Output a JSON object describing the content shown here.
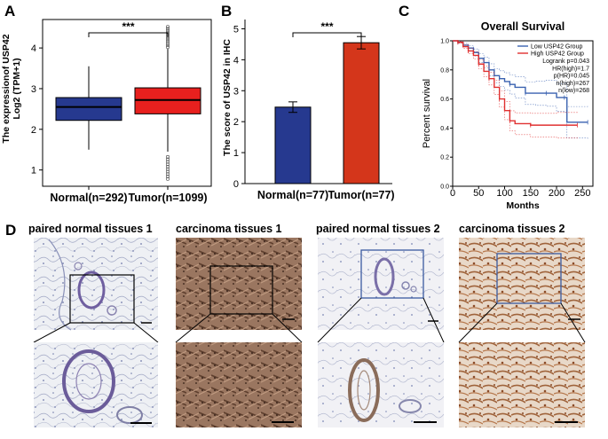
{
  "panels": {
    "A": "A",
    "B": "B",
    "C": "C",
    "D": "D"
  },
  "chart_data": [
    {
      "id": "A",
      "type": "box",
      "ylabel_line1": "The expressionof USP42",
      "ylabel_line2": "Log2 (TPM+1)",
      "yticks": [
        1,
        2,
        3,
        4
      ],
      "ylim": [
        0.6,
        4.7
      ],
      "significance": "***",
      "categories": [
        "Normal(n=292)",
        "Tumor(n=1099)"
      ],
      "colors": [
        "#26398f",
        "#e8201e"
      ],
      "boxes": [
        {
          "name": "Normal(n=292)",
          "whisker_low": 1.5,
          "q1": 2.22,
          "median": 2.55,
          "q3": 2.78,
          "whisker_high": 3.55,
          "outliers": []
        },
        {
          "name": "Tumor(n=1099)",
          "whisker_low": 1.45,
          "q1": 2.38,
          "median": 2.72,
          "q3": 3.02,
          "whisker_high": 3.98,
          "outliers": [
            4.02,
            4.07,
            4.12,
            4.17,
            4.22,
            4.27,
            4.32,
            4.37,
            4.42,
            4.47,
            4.52,
            1.32,
            1.26,
            1.2,
            1.14,
            1.08,
            1.02,
            0.96,
            0.9,
            0.84,
            0.78
          ]
        }
      ]
    },
    {
      "id": "B",
      "type": "bar",
      "ylabel": "The score of USP42 in IHC",
      "yticks": [
        0,
        1,
        2,
        3,
        4,
        5
      ],
      "ylim": [
        0,
        5.3
      ],
      "significance": "***",
      "categories": [
        "Normal(n=77)",
        "Tumor(n=77)"
      ],
      "values": [
        2.47,
        4.55
      ],
      "errors": [
        0.17,
        0.2
      ],
      "colors": [
        "#26398f",
        "#d4361b"
      ]
    },
    {
      "id": "C",
      "type": "line",
      "title": "Overall Survival",
      "xlabel": "Months",
      "ylabel": "Percent survival",
      "xticks": [
        0,
        50,
        100,
        150,
        200,
        250
      ],
      "yticks": [
        0.0,
        0.2,
        0.4,
        0.6,
        0.8,
        1.0
      ],
      "xlim": [
        0,
        270
      ],
      "ylim": [
        0,
        1.0
      ],
      "legend": {
        "low": "Low USP42 Group",
        "high": "High USP42 Group",
        "stats": [
          "Logrank p=0.043",
          "HR(high)=1.7",
          "p(HR)=0.045",
          "n(high)=267",
          "n(low)=268"
        ]
      },
      "series": [
        {
          "name": "Low USP42 Group",
          "color": "#3a62b0",
          "x": [
            0,
            10,
            20,
            30,
            40,
            50,
            60,
            70,
            80,
            90,
            100,
            110,
            120,
            140,
            160,
            180,
            200,
            215,
            220,
            260
          ],
          "y": [
            1.0,
            0.99,
            0.97,
            0.95,
            0.92,
            0.88,
            0.85,
            0.8,
            0.76,
            0.74,
            0.72,
            0.7,
            0.68,
            0.64,
            0.64,
            0.64,
            0.61,
            0.61,
            0.44,
            0.44
          ]
        },
        {
          "name": "High USP42 Group",
          "color": "#e03030",
          "x": [
            0,
            10,
            20,
            30,
            40,
            50,
            60,
            70,
            80,
            90,
            100,
            110,
            120,
            150,
            200,
            240
          ],
          "y": [
            1.0,
            0.99,
            0.96,
            0.93,
            0.9,
            0.84,
            0.79,
            0.74,
            0.68,
            0.6,
            0.52,
            0.45,
            0.43,
            0.42,
            0.42,
            0.42
          ]
        }
      ]
    }
  ],
  "tissues": {
    "labels": [
      "paired normal tissues 1",
      "carcinoma tissues 1",
      "paired normal tissues 2",
      "carcinoma tissues 2"
    ]
  }
}
